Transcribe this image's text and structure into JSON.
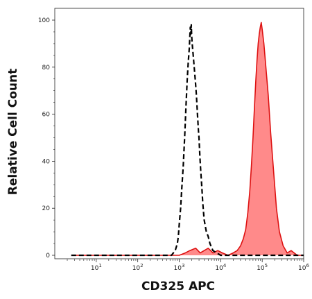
{
  "chart_data": {
    "type": "area",
    "title": "",
    "xlabel": "CD325 APC",
    "ylabel": "Relative Cell Count",
    "x_scale": "log",
    "xlim": [
      1,
      1000000
    ],
    "ylim": [
      0,
      104
    ],
    "grid": false,
    "legend": "none",
    "x_ticks": [
      {
        "value": 10,
        "base": "10",
        "exp": "1"
      },
      {
        "value": 100,
        "base": "10",
        "exp": "2"
      },
      {
        "value": 1000,
        "base": "10",
        "exp": "3"
      },
      {
        "value": 10000,
        "base": "10",
        "exp": "4"
      },
      {
        "value": 100000,
        "base": "10",
        "exp": "5"
      },
      {
        "value": 1000000,
        "base": "10",
        "exp": "6"
      }
    ],
    "y_ticks": [
      {
        "value": 0,
        "label": "0"
      },
      {
        "value": 20,
        "label": "20"
      },
      {
        "value": 40,
        "label": "40"
      },
      {
        "value": 60,
        "label": "60"
      },
      {
        "value": 80,
        "label": "80"
      },
      {
        "value": 100,
        "label": "100"
      }
    ],
    "series": [
      {
        "style": "dashed-line",
        "color": "#000000",
        "x": [
          2.5,
          100,
          400,
          650,
          800,
          900,
          950,
          1000,
          1080,
          1150,
          1250,
          1350,
          1450,
          1550,
          1650,
          1750,
          1800,
          1850,
          1900,
          1950,
          2000,
          2050,
          2150,
          2300,
          2450,
          2600,
          2750,
          2900,
          3000,
          3150,
          3300,
          3500,
          3700,
          4000,
          4500,
          5000,
          5500,
          6500,
          8000,
          10000,
          15000,
          100000,
          1000000
        ],
        "y": [
          0,
          0,
          0,
          0,
          2,
          5,
          8,
          13,
          20,
          28,
          38,
          50,
          63,
          74,
          82,
          88,
          93,
          97,
          94,
          98,
          93,
          90,
          86,
          80,
          74,
          68,
          60,
          53,
          50,
          42,
          36,
          29,
          22,
          15,
          10,
          8,
          5,
          2,
          1,
          0,
          0,
          0,
          0
        ]
      },
      {
        "style": "filled",
        "color": "#dd1111",
        "fill": "#ff8a8a",
        "x": [
          2.5,
          100,
          500,
          1000,
          1400,
          1800,
          2500,
          3200,
          4000,
          5000,
          6500,
          8500,
          11000,
          15000,
          20000,
          25000,
          30000,
          35000,
          40000,
          45000,
          50000,
          55000,
          60000,
          65000,
          70000,
          75000,
          80000,
          85000,
          90000,
          95000,
          100000,
          110000,
          120000,
          140000,
          160000,
          190000,
          220000,
          260000,
          320000,
          400000,
          500000,
          700000,
          1000000
        ],
        "y": [
          0,
          0,
          0,
          0,
          1,
          2,
          3,
          1,
          2,
          3,
          1,
          2,
          1,
          0,
          1,
          2,
          4,
          7,
          11,
          18,
          27,
          38,
          50,
          63,
          74,
          83,
          90,
          94,
          97,
          99,
          96,
          90,
          82,
          68,
          52,
          35,
          20,
          10,
          4,
          1,
          2,
          0,
          0
        ]
      }
    ]
  }
}
